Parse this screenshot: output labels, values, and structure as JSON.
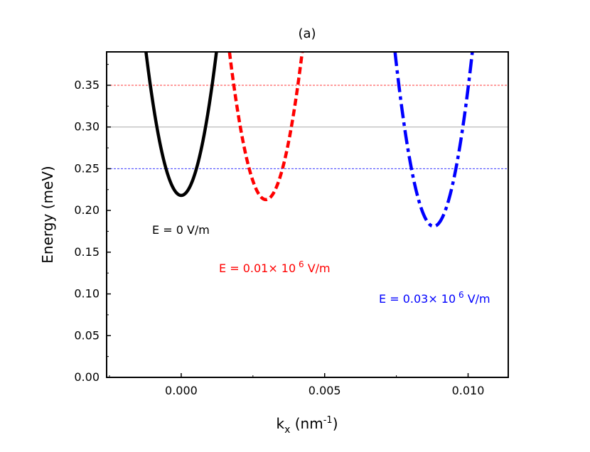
{
  "chart_data": {
    "type": "line",
    "title": "(a)",
    "xlabel": {
      "base": "k",
      "sub": "x",
      "unit_pre": " (nm",
      "unit_sup": "-1",
      "unit_post": ")"
    },
    "ylabel": "Energy (meV)",
    "xlim": [
      -0.0026,
      0.0114
    ],
    "ylim": [
      0,
      0.39
    ],
    "x_ticks": [
      0.0,
      0.005,
      0.01
    ],
    "x_tick_labels": [
      "0.000",
      "0.005",
      "0.010"
    ],
    "y_ticks": [
      0.0,
      0.05,
      0.1,
      0.15,
      0.2,
      0.25,
      0.3,
      0.35
    ],
    "y_tick_labels": [
      "0.00",
      "0.05",
      "0.10",
      "0.15",
      "0.20",
      "0.25",
      "0.30",
      "0.35"
    ],
    "reference_lines": [
      {
        "y": 0.35,
        "color": "#ff3b3b",
        "style": "dashed"
      },
      {
        "y": 0.3,
        "color": "#a8a8a8",
        "style": "solid"
      },
      {
        "y": 0.25,
        "color": "#3b3bff",
        "style": "dashed"
      }
    ],
    "series": [
      {
        "color": "#000000",
        "style": "solid",
        "vertex_x": 0.0,
        "vertex_y": 0.218,
        "curvature": 114000
      },
      {
        "color": "#ff0000",
        "style": "dashed",
        "vertex_x": 0.00295,
        "vertex_y": 0.213,
        "curvature": 110000
      },
      {
        "color": "#0000ff",
        "style": "dashdot",
        "vertex_x": 0.0088,
        "vertex_y": 0.181,
        "curvature": 115000
      }
    ],
    "annotations": [
      {
        "text": "E = 0 V/m",
        "color": "#000000"
      },
      {
        "text_pre": "E = 0.01× 10",
        "sup": " 6",
        "text_post": " V/m",
        "color": "#ff0000"
      },
      {
        "text_pre": "E = 0.03× 10",
        "sup": " 6",
        "text_post": " V/m",
        "color": "#0000ff"
      }
    ]
  }
}
